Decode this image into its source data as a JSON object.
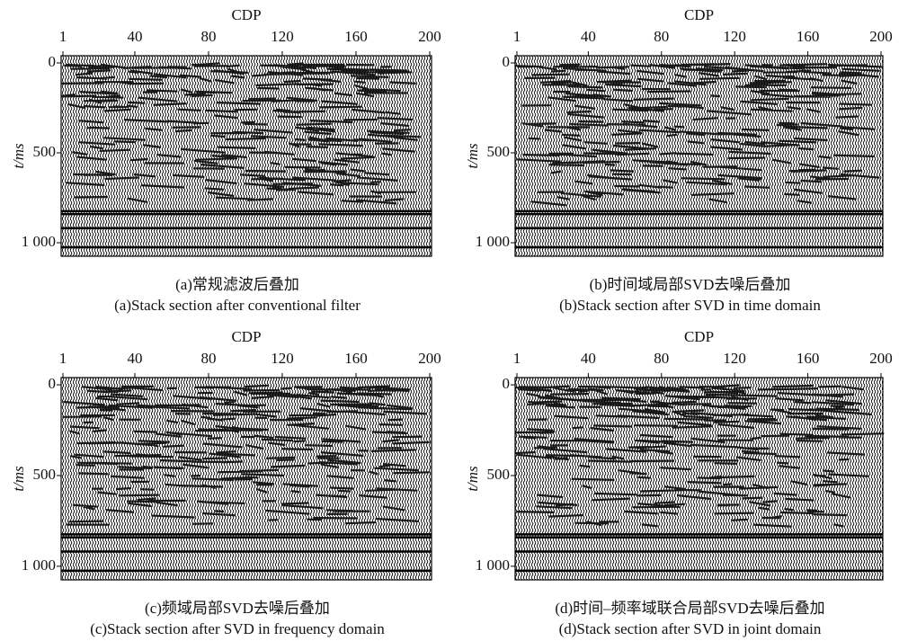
{
  "chart_data": [
    {
      "type": "seismic",
      "xlabel": "CDP",
      "ylabel": "t/ms",
      "xlim": [
        1,
        200
      ],
      "xticks": [
        1,
        40,
        80,
        120,
        160,
        200
      ],
      "ylim": [
        1075,
        -40
      ],
      "yticks": [
        0,
        500,
        {
          "value": 1000,
          "label": "1 000"
        }
      ],
      "caption_zh": "(a)常规滤波后叠加",
      "caption_en": "(a)Stack section after conventional filter"
    },
    {
      "type": "seismic",
      "xlabel": "CDP",
      "xlim": [
        1,
        200
      ],
      "xticks": [
        1,
        40,
        80,
        120,
        160,
        200
      ],
      "ylabel": "t/ms",
      "ylim": [
        1075,
        -40
      ],
      "yticks": [
        0,
        500,
        {
          "value": 1000,
          "label": "1 000"
        }
      ],
      "caption_zh": "(b)时间域局部SVD去噪后叠加",
      "caption_en": "(b)Stack section after SVD in time domain"
    },
    {
      "type": "seismic",
      "xlabel": "CDP",
      "xlim": [
        1,
        200
      ],
      "xticks": [
        1,
        40,
        80,
        120,
        160,
        200
      ],
      "ylabel": "t/ms",
      "ylim": [
        1075,
        -40
      ],
      "yticks": [
        0,
        500,
        {
          "value": 1000,
          "label": "1 000"
        }
      ],
      "caption_zh": "(c)频域局部SVD去噪后叠加",
      "caption_en": "(c)Stack section after SVD in frequency domain"
    },
    {
      "type": "seismic",
      "xlabel": "CDP",
      "xlim": [
        1,
        200
      ],
      "xticks": [
        1,
        40,
        80,
        120,
        160,
        200
      ],
      "ylabel": "t/ms",
      "ylim": [
        1075,
        -40
      ],
      "yticks": [
        0,
        500,
        {
          "value": 1000,
          "label": "1 000"
        }
      ],
      "caption_zh": "(d)时间–频率域联合局部SVD去噪后叠加",
      "caption_en": "(d)Stack section after SVD in joint domain"
    }
  ]
}
